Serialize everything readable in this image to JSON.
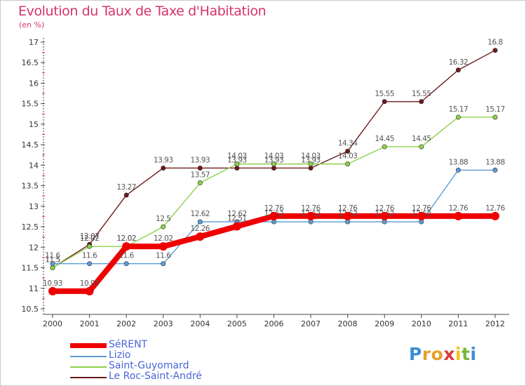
{
  "title": "Evolution du Taux de Taxe d'Habitation",
  "unit": "(en %)",
  "logo": {
    "letters": [
      "P",
      "r",
      "o",
      "x",
      "i",
      "t",
      "i"
    ],
    "colors": [
      "#3b8ed6",
      "#e6a12c",
      "#e6a12c",
      "#d63b3b",
      "#f0c419",
      "#78b83a",
      "#3b8ed6"
    ]
  },
  "chart_data": {
    "type": "line",
    "title": "Evolution du Taux de Taxe d'Habitation",
    "ylabel": "(en %)",
    "xlabel": "",
    "x": [
      "2000",
      "2001",
      "2002",
      "2003",
      "2004",
      "2005",
      "2006",
      "2007",
      "2008",
      "2009",
      "2010",
      "2011",
      "2012"
    ],
    "ylim": [
      10.5,
      17
    ],
    "yticks": [
      "10.5",
      "11",
      "11.5",
      "12",
      "12.5",
      "13",
      "13.5",
      "14",
      "14.5",
      "15",
      "15.5",
      "16",
      "16.5",
      "17"
    ],
    "grid": false,
    "legend_position": "bottom-left",
    "series": [
      {
        "name": "Le Roc-Saint-André",
        "color": "#6b1a1a",
        "values": [
          11.5,
          12.07,
          13.27,
          13.93,
          13.93,
          13.93,
          13.93,
          13.93,
          14.34,
          15.55,
          15.55,
          16.32,
          16.8
        ],
        "labels": [
          "11.5",
          "12.07",
          "13.27",
          "13.93",
          "13.93",
          "13.93",
          "13.93",
          "13.93",
          "14.34",
          "15.55",
          "15.55",
          "16.32",
          "16.8"
        ]
      },
      {
        "name": "Saint-Guyomard",
        "color": "#8ecf4a",
        "values": [
          11.5,
          12.02,
          12.02,
          12.5,
          13.57,
          14.03,
          14.03,
          14.03,
          14.03,
          14.45,
          14.45,
          15.17,
          15.17
        ],
        "labels": [
          "11.5",
          "12.02",
          "12.02",
          "12.5",
          "13.57",
          "14.03",
          "14.03",
          "14.03",
          "14.03",
          "14.45",
          "14.45",
          "15.17",
          "15.17"
        ]
      },
      {
        "name": "Lizio",
        "color": "#5b9bd5",
        "values": [
          11.6,
          11.6,
          11.6,
          11.6,
          12.62,
          12.62,
          12.62,
          12.62,
          12.62,
          12.62,
          12.62,
          13.88,
          13.88
        ],
        "labels": [
          "11.6",
          "11.6",
          "11.6",
          "11.6",
          "12.62",
          "12.62",
          "12.62",
          "12.62",
          "12.62",
          "12.62",
          "12.62",
          "13.88",
          "13.88"
        ]
      },
      {
        "name": "SéRENT",
        "color": "#ee0000",
        "values": [
          10.93,
          10.93,
          12.02,
          12.02,
          12.26,
          12.51,
          12.76,
          12.76,
          12.76,
          12.76,
          12.76,
          12.76,
          12.76
        ],
        "labels": [
          "10.93",
          "10.93",
          "12.02",
          "12.02",
          "12.26",
          "12.51",
          "12.76",
          "12.76",
          "12.76",
          "12.76",
          "12.76",
          "12.76",
          "12.76"
        ]
      }
    ],
    "legend": [
      "SéRENT",
      "Lizio",
      "Saint-Guyomard",
      "Le Roc-Saint-André"
    ]
  }
}
